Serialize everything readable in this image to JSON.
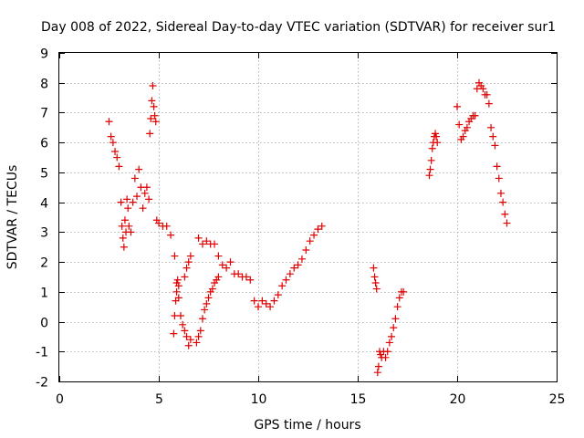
{
  "chart_data": {
    "type": "scatter",
    "title": "Day 008 of 2022, Sidereal Day-to-day VTEC variation (SDTVAR) for receiver sur1",
    "xlabel": "GPS time / hours",
    "ylabel": "SDTVAR / TECUs",
    "xlim": [
      0,
      25
    ],
    "ylim": [
      -2,
      9
    ],
    "xticks": [
      0,
      5,
      10,
      15,
      20,
      25
    ],
    "xtick_labels": [
      "0",
      "5",
      "10",
      "15",
      "20",
      "25"
    ],
    "yticks": [
      -2,
      -1,
      0,
      1,
      2,
      3,
      4,
      5,
      6,
      7,
      8,
      9
    ],
    "ytick_labels": [
      "-2",
      "-1",
      "0",
      "1",
      "2",
      "3",
      "4",
      "5",
      "6",
      "7",
      "8",
      "9"
    ],
    "grid": true,
    "marker": "plus",
    "marker_color": "#e00000",
    "series": [
      {
        "name": "segment-1",
        "x": [
          2.5,
          2.6,
          2.7,
          2.8,
          2.9,
          3.0,
          3.1,
          3.15,
          3.2,
          3.25,
          3.3,
          3.35,
          3.4,
          3.45,
          3.5,
          3.6,
          3.7,
          3.8,
          3.9,
          4.0,
          4.1,
          4.2,
          4.3,
          4.4,
          4.5,
          4.55,
          4.6,
          4.65,
          4.7,
          4.75,
          4.8,
          4.85,
          4.9
        ],
        "y": [
          6.7,
          6.2,
          6.0,
          5.7,
          5.5,
          5.2,
          4.0,
          3.2,
          2.8,
          2.5,
          3.4,
          3.0,
          4.1,
          3.8,
          3.2,
          3.0,
          4.0,
          4.8,
          4.2,
          5.1,
          4.5,
          3.8,
          4.3,
          4.5,
          4.1,
          6.3,
          6.8,
          7.4,
          7.9,
          7.2,
          6.9,
          6.7,
          3.4
        ]
      },
      {
        "name": "segment-2",
        "x": [
          5.0,
          5.2,
          5.4,
          5.6,
          5.8,
          5.9,
          6.0,
          6.1,
          6.2,
          6.3,
          6.4,
          6.5,
          6.6,
          6.3,
          6.4,
          6.5,
          6.6
        ],
        "y": [
          3.3,
          3.2,
          3.2,
          2.9,
          2.2,
          1.3,
          0.8,
          0.2,
          -0.1,
          -0.3,
          -0.5,
          -0.8,
          -0.6,
          1.5,
          1.8,
          2.0,
          2.2
        ]
      },
      {
        "name": "segment-3",
        "x": [
          5.75,
          5.8,
          5.85,
          5.9,
          5.95,
          6.0
        ],
        "y": [
          -0.4,
          0.2,
          0.7,
          1.0,
          1.4,
          1.2
        ]
      },
      {
        "name": "segment-4",
        "x": [
          6.9,
          7.0,
          7.1,
          7.2,
          7.3,
          7.4,
          7.5,
          7.6,
          7.7,
          7.8,
          7.9,
          8.0
        ],
        "y": [
          -0.7,
          -0.5,
          -0.3,
          0.1,
          0.4,
          0.6,
          0.8,
          1.0,
          1.1,
          1.3,
          1.4,
          1.5
        ]
      },
      {
        "name": "segment-5",
        "x": [
          7.0,
          7.2,
          7.4,
          7.6,
          7.8,
          8.0,
          8.2,
          8.4,
          8.6,
          8.8,
          9.0,
          9.2,
          9.4,
          9.6
        ],
        "y": [
          2.8,
          2.6,
          2.7,
          2.6,
          2.6,
          2.2,
          1.9,
          1.8,
          2.0,
          1.6,
          1.6,
          1.5,
          1.5,
          1.4
        ]
      },
      {
        "name": "segment-6",
        "x": [
          9.8,
          10.0,
          10.2,
          10.4,
          10.6,
          10.8,
          11.0,
          11.2,
          11.4,
          11.6,
          11.8,
          12.0,
          12.2,
          12.4,
          12.6,
          12.8,
          13.0,
          13.2
        ],
        "y": [
          0.7,
          0.5,
          0.7,
          0.6,
          0.5,
          0.7,
          0.9,
          1.2,
          1.4,
          1.6,
          1.8,
          1.9,
          2.1,
          2.4,
          2.7,
          2.9,
          3.1,
          3.2
        ]
      },
      {
        "name": "segment-7",
        "x": [
          15.8,
          15.85,
          15.9,
          15.95,
          16.0,
          16.05,
          16.1,
          16.15,
          16.2,
          16.3,
          16.4,
          16.5,
          16.6,
          16.7,
          16.8,
          16.9,
          17.0,
          17.1,
          17.2,
          17.3
        ],
        "y": [
          1.8,
          1.5,
          1.3,
          1.1,
          -1.7,
          -1.5,
          -1.0,
          -1.1,
          -1.2,
          -1.0,
          -1.2,
          -1.0,
          -0.7,
          -0.5,
          -0.2,
          0.1,
          0.5,
          0.8,
          1.0,
          1.0
        ]
      },
      {
        "name": "segment-8",
        "x": [
          18.6,
          18.65,
          18.7,
          18.75,
          18.8,
          18.85,
          18.9,
          18.95,
          19.0
        ],
        "y": [
          4.9,
          5.1,
          5.4,
          5.8,
          6.0,
          6.2,
          6.3,
          6.2,
          6.0
        ]
      },
      {
        "name": "segment-9",
        "x": [
          20.0,
          20.1,
          20.2,
          20.3,
          20.4,
          20.5,
          20.6,
          20.7,
          20.8,
          20.9,
          21.0,
          21.1,
          21.2,
          21.3,
          21.4,
          21.5,
          21.6,
          21.7,
          21.8,
          21.9,
          22.0,
          22.1,
          22.2,
          22.3,
          22.4,
          22.5
        ],
        "y": [
          7.2,
          6.6,
          6.1,
          6.2,
          6.4,
          6.5,
          6.7,
          6.8,
          6.9,
          6.9,
          7.8,
          8.0,
          7.9,
          7.8,
          7.6,
          7.6,
          7.3,
          6.5,
          6.2,
          5.9,
          5.2,
          4.8,
          4.3,
          4.0,
          3.6,
          3.3
        ]
      }
    ]
  }
}
